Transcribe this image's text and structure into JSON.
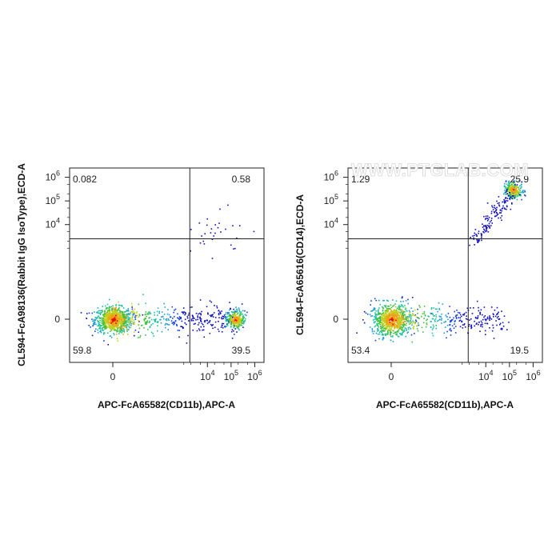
{
  "chart_data": [
    {
      "type": "scatter",
      "plot_style": "density-dot-plot",
      "xlabel": "APC-FcA65582(CD11b),APC-A",
      "ylabel": "CL594-FcA98136(Rabbit IgG IsoType),ECD-A",
      "x_scale": "biexponential",
      "y_scale": "biexponential",
      "x_ticks": [
        {
          "label": "0",
          "sup": "",
          "value": 0
        },
        {
          "label": "10",
          "sup": "4",
          "value": 10000
        },
        {
          "label": "10",
          "sup": "5",
          "value": 100000
        },
        {
          "label": "10",
          "sup": "6",
          "value": 1000000
        }
      ],
      "y_ticks": [
        {
          "label": "0",
          "sup": "",
          "value": 0
        },
        {
          "label": "10",
          "sup": "4",
          "value": 10000
        },
        {
          "label": "10",
          "sup": "5",
          "value": 100000
        },
        {
          "label": "10",
          "sup": "6",
          "value": 1000000
        }
      ],
      "gate": {
        "x": 1800,
        "y": 2500
      },
      "quadrants": {
        "upper_left": "0.082",
        "upper_right": "0.58",
        "lower_left": "59.8",
        "lower_right": "39.5"
      },
      "populations": [
        {
          "name": "negative",
          "center_x": 0,
          "center_y": 0,
          "share": 0.6
        },
        {
          "name": "cd11b-positive",
          "center_x": 150000,
          "center_y": 0,
          "share": 0.4
        }
      ],
      "grid": false,
      "legend": "none"
    },
    {
      "type": "scatter",
      "plot_style": "density-dot-plot",
      "xlabel": "APC-FcA65582(CD11b),APC-A",
      "ylabel": "CL594-FcA65616(CD14),ECD-A",
      "x_scale": "biexponential",
      "y_scale": "biexponential",
      "x_ticks": [
        {
          "label": "0",
          "sup": "",
          "value": 0
        },
        {
          "label": "10",
          "sup": "4",
          "value": 10000
        },
        {
          "label": "10",
          "sup": "5",
          "value": 100000
        },
        {
          "label": "10",
          "sup": "6",
          "value": 1000000
        }
      ],
      "y_ticks": [
        {
          "label": "0",
          "sup": "",
          "value": 0
        },
        {
          "label": "10",
          "sup": "4",
          "value": 10000
        },
        {
          "label": "10",
          "sup": "5",
          "value": 100000
        },
        {
          "label": "10",
          "sup": "6",
          "value": 1000000
        }
      ],
      "gate": {
        "x": 1800,
        "y": 2500
      },
      "quadrants": {
        "upper_left": "1.29",
        "upper_right": "25.9",
        "lower_left": "53.4",
        "lower_right": "19.5"
      },
      "populations": [
        {
          "name": "negative",
          "center_x": 0,
          "center_y": 0,
          "share": 0.53
        },
        {
          "name": "cd11b-positive",
          "center_x": 60000,
          "center_y": 0,
          "share": 0.2
        },
        {
          "name": "cd11b-cd14-positive",
          "center_x": 140000,
          "center_y": 300000,
          "share": 0.26
        }
      ],
      "grid": false,
      "legend": "none"
    }
  ],
  "watermark": "WWW.PTGLAB.COM",
  "colors": {
    "density_low": "#1010c0",
    "density_mid": "#20b0b0",
    "density_high": "#f0e020",
    "density_peak": "#e01010",
    "axis": "#222222"
  }
}
